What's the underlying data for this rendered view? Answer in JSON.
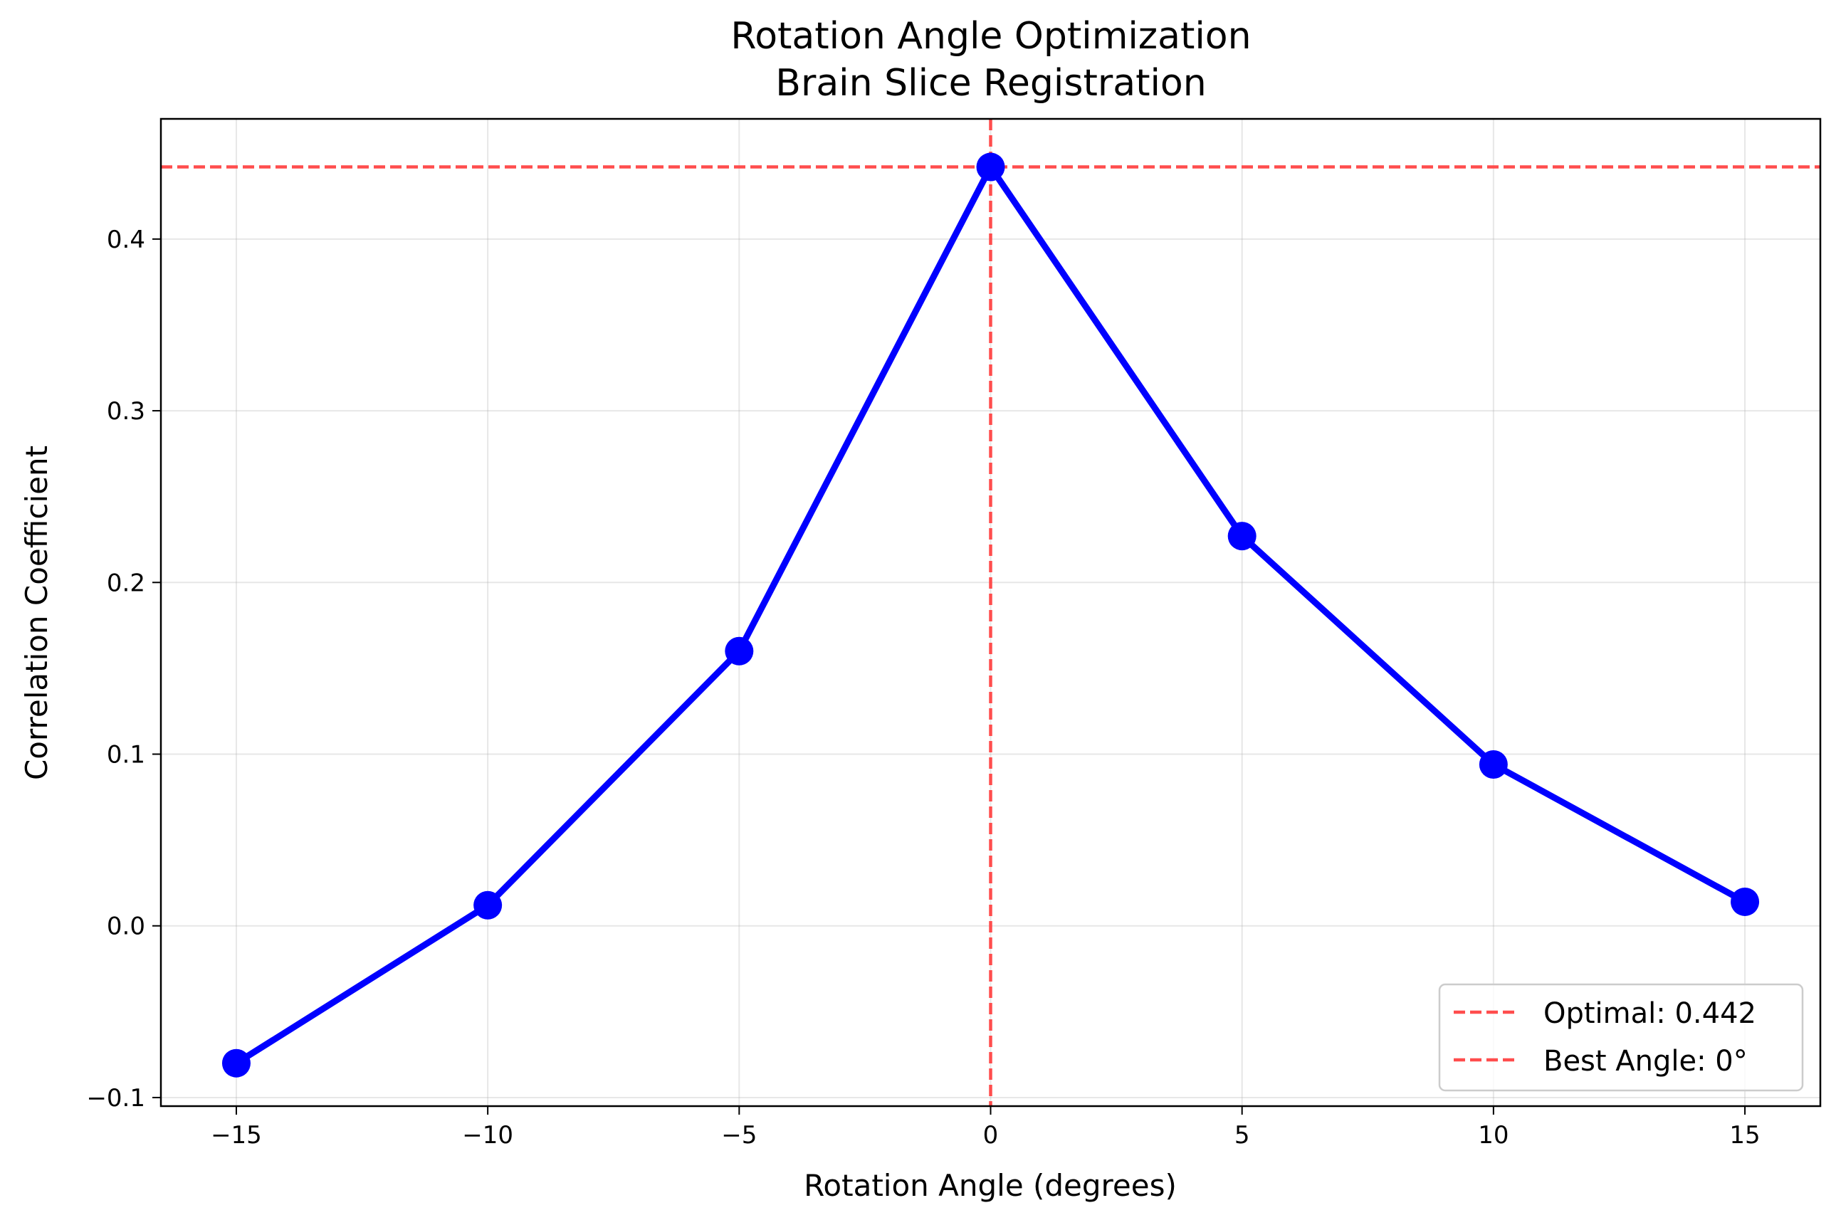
{
  "chart_data": {
    "type": "line",
    "title": "Rotation Angle Optimization\nBrain Slice Registration",
    "title_lines": [
      "Rotation Angle Optimization",
      "Brain Slice Registration"
    ],
    "xlabel": "Rotation Angle (degrees)",
    "ylabel": "Correlation Coefficient",
    "xlim": [
      -16.5,
      16.5
    ],
    "ylim": [
      -0.105,
      0.47
    ],
    "xticks": [
      -15,
      -10,
      -5,
      0,
      5,
      10,
      15
    ],
    "xtick_labels": [
      "−15",
      "−10",
      "−5",
      "0",
      "5",
      "10",
      "15"
    ],
    "yticks": [
      -0.1,
      0.0,
      0.1,
      0.2,
      0.3,
      0.4
    ],
    "ytick_labels": [
      "−0.1",
      "0.0",
      "0.1",
      "0.2",
      "0.3",
      "0.4"
    ],
    "grid": true,
    "legend_position": "lower right",
    "series": [
      {
        "x": [
          -15,
          -10,
          -5,
          0,
          5,
          10,
          15
        ],
        "values": [
          -0.08,
          0.012,
          0.16,
          0.442,
          0.227,
          0.094,
          0.014
        ],
        "color": "#0000ff",
        "marker": "circle"
      }
    ],
    "reference_lines": [
      {
        "orientation": "horizontal",
        "value": 0.442,
        "label": "Optimal: 0.442",
        "color": "#ff4d4d",
        "style": "dashed"
      },
      {
        "orientation": "vertical",
        "value": 0,
        "label": "Best Angle: 0°",
        "color": "#ff4d4d",
        "style": "dashed"
      }
    ],
    "legend": [
      "Optimal: 0.442",
      "Best Angle: 0°"
    ]
  }
}
